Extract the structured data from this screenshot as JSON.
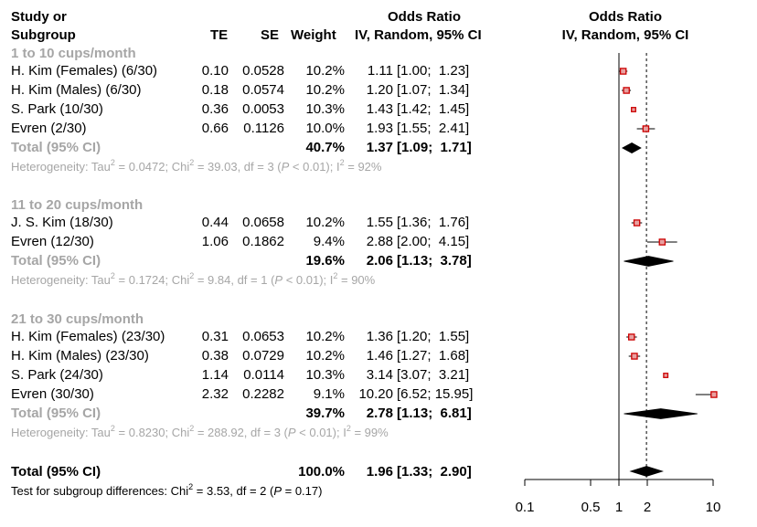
{
  "header": {
    "col_study_line1": "Study or",
    "col_study_line2": "Subgroup",
    "col_te": "TE",
    "col_se": "SE",
    "col_weight": "Weight",
    "col_or_line1": "Odds Ratio",
    "col_or_line2": "IV, Random, 95% CI",
    "plot_line1": "Odds Ratio",
    "plot_line2": "IV, Random, 95% CI"
  },
  "subgroups": [
    {
      "title": "1 to 10 cups/month",
      "studies": [
        {
          "name": "H. Kim (Females) (6/30)",
          "te": "0.10",
          "se": "0.0528",
          "weight": "10.2%",
          "or": "1.11",
          "ci": "[1.00;  1.23]"
        },
        {
          "name": "H. Kim (Males) (6/30)",
          "te": "0.18",
          "se": "0.0574",
          "weight": "10.2%",
          "or": "1.20",
          "ci": "[1.07;  1.34]"
        },
        {
          "name": "S. Park (10/30)",
          "te": "0.36",
          "se": "0.0053",
          "weight": "10.3%",
          "or": "1.43",
          "ci": "[1.42;  1.45]"
        },
        {
          "name": "Evren (2/30)",
          "te": "0.66",
          "se": "0.1126",
          "weight": "10.0%",
          "or": "1.93",
          "ci": "[1.55;  2.41]"
        }
      ],
      "total": {
        "label": "Total (95% CI)",
        "weight": "40.7%",
        "or": "1.37",
        "ci": "[1.09;  1.71]"
      },
      "het": {
        "tau": "Heterogeneity: Tau",
        "chi": " = 0.0472; Chi",
        "df": " = 39.03, df = 3 (",
        "p": "P",
        "pv": " < 0.01); I",
        "i2": " = 92%"
      }
    },
    {
      "title": "11 to 20 cups/month",
      "studies": [
        {
          "name": "J. S. Kim (18/30)",
          "te": "0.44",
          "se": "0.0658",
          "weight": "10.2%",
          "or": "1.55",
          "ci": "[1.36;  1.76]"
        },
        {
          "name": "Evren (12/30)",
          "te": "1.06",
          "se": "0.1862",
          "weight": "9.4%",
          "or": "2.88",
          "ci": "[2.00;  4.15]"
        }
      ],
      "total": {
        "label": "Total (95% CI)",
        "weight": "19.6%",
        "or": "2.06",
        "ci": "[1.13;  3.78]"
      },
      "het": {
        "tau": "Heterogeneity: Tau",
        "chi": " = 0.1724; Chi",
        "df": " = 9.84, df = 1 (",
        "p": "P",
        "pv": " < 0.01); I",
        "i2": " = 90%"
      }
    },
    {
      "title": "21 to 30 cups/month",
      "studies": [
        {
          "name": "H. Kim (Females) (23/30)",
          "te": "0.31",
          "se": "0.0653",
          "weight": "10.2%",
          "or": "1.36",
          "ci": "[1.20;  1.55]"
        },
        {
          "name": "H. Kim (Males) (23/30)",
          "te": "0.38",
          "se": "0.0729",
          "weight": "10.2%",
          "or": "1.46",
          "ci": "[1.27;  1.68]"
        },
        {
          "name": "S. Park (24/30)",
          "te": "1.14",
          "se": "0.0114",
          "weight": "10.3%",
          "or": "3.14",
          "ci": "[3.07;  3.21]"
        },
        {
          "name": "Evren (30/30)",
          "te": "2.32",
          "se": "0.2282",
          "weight": "9.1%",
          "or": "10.20",
          "ci": "[6.52; 15.95]"
        }
      ],
      "total": {
        "label": "Total (95% CI)",
        "weight": "39.7%",
        "or": "2.78",
        "ci": "[1.13;  6.81]"
      },
      "het": {
        "tau": "Heterogeneity: Tau",
        "chi": " = 0.8230; Chi",
        "df": " = 288.92, df = 3 (",
        "p": "P",
        "pv": " < 0.01); I",
        "i2": " = 99%"
      }
    }
  ],
  "overall": {
    "label": "Total (95% CI)",
    "weight": "100.0%",
    "or": "1.96",
    "ci": "[1.33;  2.90]"
  },
  "subgroup_test": {
    "a": "Test for subgroup differences: Chi",
    "b": " = 3.53, df = 2 (",
    "p": "P",
    "c": " = 0.17)"
  },
  "sup2": "2",
  "colors": {
    "marker": "#cc0000",
    "grey_text": "#a6a6a6",
    "ref_line": "#000000"
  },
  "chart_data": {
    "type": "forest",
    "x_scale": "log",
    "xlim": [
      0.1,
      10
    ],
    "x_ticks": [
      0.1,
      0.5,
      1,
      2,
      10
    ],
    "x_tick_labels": [
      "0.1",
      "0.5",
      "1",
      "2",
      "10"
    ],
    "null_line": 1,
    "overall_line": 1.96,
    "studies": [
      {
        "group": 0,
        "or": 1.11,
        "lo": 1.0,
        "hi": 1.23,
        "weight": 10.2
      },
      {
        "group": 0,
        "or": 1.2,
        "lo": 1.07,
        "hi": 1.34,
        "weight": 10.2
      },
      {
        "group": 0,
        "or": 1.43,
        "lo": 1.42,
        "hi": 1.45,
        "weight": 10.3
      },
      {
        "group": 0,
        "or": 1.93,
        "lo": 1.55,
        "hi": 2.41,
        "weight": 10.0
      },
      {
        "group": 1,
        "or": 1.55,
        "lo": 1.36,
        "hi": 1.76,
        "weight": 10.2
      },
      {
        "group": 1,
        "or": 2.88,
        "lo": 2.0,
        "hi": 4.15,
        "weight": 9.4
      },
      {
        "group": 2,
        "or": 1.36,
        "lo": 1.2,
        "hi": 1.55,
        "weight": 10.2
      },
      {
        "group": 2,
        "or": 1.46,
        "lo": 1.27,
        "hi": 1.68,
        "weight": 10.2
      },
      {
        "group": 2,
        "or": 3.14,
        "lo": 3.07,
        "hi": 3.21,
        "weight": 10.3
      },
      {
        "group": 2,
        "or": 10.2,
        "lo": 6.52,
        "hi": 15.95,
        "weight": 9.1
      }
    ],
    "subgroup_totals": [
      {
        "group": 0,
        "or": 1.37,
        "lo": 1.09,
        "hi": 1.71
      },
      {
        "group": 1,
        "or": 2.06,
        "lo": 1.13,
        "hi": 3.78
      },
      {
        "group": 2,
        "or": 2.78,
        "lo": 1.13,
        "hi": 6.81
      }
    ],
    "overall": {
      "or": 1.96,
      "lo": 1.33,
      "hi": 2.9
    }
  }
}
